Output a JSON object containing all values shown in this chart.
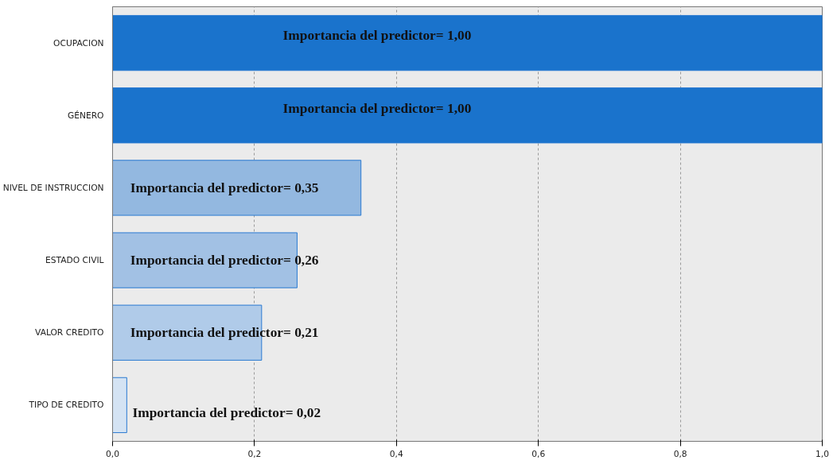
{
  "chart_data": {
    "type": "bar",
    "orientation": "horizontal",
    "categories": [
      "OCUPACION",
      "GÉNERO",
      "NIVEL DE INSTRUCCION",
      "ESTADO CIVIL",
      "VALOR CREDITO",
      "TIPO DE CREDITO"
    ],
    "values": [
      1.0,
      1.0,
      0.35,
      0.26,
      0.21,
      0.02
    ],
    "colors": [
      "#1a73cc",
      "#1a73cc",
      "#93b8e0",
      "#a2c1e4",
      "#b0cbe9",
      "#d4e3f3"
    ],
    "value_labels": [
      "Importancia del predictor= 1,00",
      "Importancia del predictor= 1,00",
      "Importancia del predictor= 0,35",
      "Importancia del predictor= 0,26",
      "Importancia del predictor= 0,21",
      "Importancia del predictor= 0,02"
    ],
    "xlim": [
      0,
      1
    ],
    "xticks": [
      {
        "value": 0,
        "label": "0,0"
      },
      {
        "value": 0.2,
        "label": "0,2"
      },
      {
        "value": 0.4,
        "label": "0,4"
      },
      {
        "value": 0.6,
        "label": "0,6"
      },
      {
        "value": 0.8,
        "label": "0,8"
      },
      {
        "value": 1,
        "label": "1,0"
      }
    ],
    "grid": "x"
  }
}
